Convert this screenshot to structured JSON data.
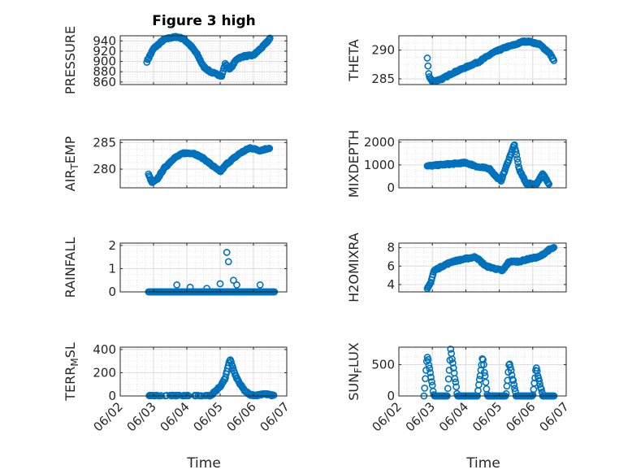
{
  "figure": {
    "title": "Figure 3 high",
    "xlabel": "Time",
    "marker_color": "#0072BD"
  },
  "chart_data": [
    {
      "type": "scatter",
      "ylabel": "PRESSURE",
      "xlim": [
        0,
        5
      ],
      "ylim": [
        855,
        950
      ],
      "yticks": [
        860,
        880,
        900,
        920,
        940
      ],
      "xticks": [
        "06/02",
        "06/03",
        "06/04",
        "06/05",
        "06/06",
        "06/07"
      ],
      "grid": true,
      "anchors": [
        [
          0.8,
          900
        ],
        [
          1.0,
          925
        ],
        [
          1.3,
          942
        ],
        [
          1.5,
          946
        ],
        [
          1.7,
          948
        ],
        [
          1.9,
          944
        ],
        [
          2.1,
          932
        ],
        [
          2.3,
          915
        ],
        [
          2.5,
          890
        ],
        [
          2.7,
          880
        ],
        [
          2.9,
          875
        ],
        [
          3.05,
          872
        ],
        [
          3.15,
          895
        ],
        [
          3.3,
          885
        ],
        [
          3.5,
          905
        ],
        [
          3.7,
          910
        ],
        [
          4.0,
          912
        ],
        [
          4.3,
          930
        ],
        [
          4.5,
          945
        ]
      ]
    },
    {
      "type": "scatter",
      "ylabel": "THETA",
      "xlim": [
        0,
        5
      ],
      "ylim": [
        284,
        292.5
      ],
      "yticks": [
        285,
        290
      ],
      "xticks": [
        "06/02",
        "06/03",
        "06/04",
        "06/05",
        "06/06",
        "06/07"
      ],
      "grid": true,
      "anchors": [
        [
          0.85,
          288.5
        ],
        [
          0.9,
          285.5
        ],
        [
          1.0,
          284.5
        ],
        [
          1.3,
          285
        ],
        [
          1.6,
          286
        ],
        [
          2.0,
          287
        ],
        [
          2.4,
          288
        ],
        [
          2.8,
          289.5
        ],
        [
          3.2,
          290.5
        ],
        [
          3.5,
          291
        ],
        [
          3.7,
          291.5
        ],
        [
          3.9,
          291.5
        ],
        [
          4.2,
          291
        ],
        [
          4.5,
          289.5
        ],
        [
          4.65,
          288
        ]
      ]
    },
    {
      "type": "scatter",
      "ylabel": "AIR_TEMP",
      "xlim": [
        0,
        5
      ],
      "ylim": [
        276.5,
        285.5
      ],
      "yticks": [
        280,
        285
      ],
      "xticks": [
        "06/02",
        "06/03",
        "06/04",
        "06/05",
        "06/06",
        "06/07"
      ],
      "grid": true,
      "anchors": [
        [
          0.85,
          279
        ],
        [
          0.95,
          277.5
        ],
        [
          1.1,
          278
        ],
        [
          1.3,
          280
        ],
        [
          1.6,
          282
        ],
        [
          1.9,
          283
        ],
        [
          2.2,
          283
        ],
        [
          2.5,
          282
        ],
        [
          2.8,
          280.5
        ],
        [
          3.0,
          279.5
        ],
        [
          3.2,
          281
        ],
        [
          3.4,
          282
        ],
        [
          3.6,
          283
        ],
        [
          3.9,
          284
        ],
        [
          4.2,
          283.5
        ],
        [
          4.5,
          284
        ]
      ]
    },
    {
      "type": "scatter",
      "ylabel": "MIXDEPTH",
      "xlim": [
        0,
        5
      ],
      "ylim": [
        0,
        2100
      ],
      "yticks": [
        0,
        1000,
        2000
      ],
      "xticks": [
        "06/02",
        "06/03",
        "06/04",
        "06/05",
        "06/06",
        "06/07"
      ],
      "grid": true,
      "anchors": [
        [
          0.85,
          950
        ],
        [
          1.2,
          1000
        ],
        [
          1.6,
          1050
        ],
        [
          2.0,
          1100
        ],
        [
          2.4,
          900
        ],
        [
          2.7,
          850
        ],
        [
          2.9,
          500
        ],
        [
          3.05,
          300
        ],
        [
          3.3,
          1300
        ],
        [
          3.45,
          1900
        ],
        [
          3.6,
          800
        ],
        [
          3.8,
          200
        ],
        [
          4.1,
          150
        ],
        [
          4.3,
          600
        ],
        [
          4.5,
          150
        ]
      ]
    },
    {
      "type": "scatter",
      "ylabel": "RAINFALL",
      "xlim": [
        0,
        5
      ],
      "ylim": [
        0,
        2.1
      ],
      "yticks": [
        0,
        1,
        2
      ],
      "xticks": [
        "06/02",
        "06/03",
        "06/04",
        "06/05",
        "06/06",
        "06/07"
      ],
      "grid": true,
      "anchors": [
        [
          0.85,
          0
        ],
        [
          4.65,
          0
        ]
      ],
      "spikes": [
        [
          1.7,
          0.3
        ],
        [
          2.1,
          0.2
        ],
        [
          2.6,
          0.15
        ],
        [
          3.0,
          0.35
        ],
        [
          3.2,
          1.7
        ],
        [
          3.25,
          1.3
        ],
        [
          3.4,
          0.5
        ],
        [
          3.5,
          0.3
        ],
        [
          4.2,
          0.3
        ]
      ]
    },
    {
      "type": "scatter",
      "ylabel": "H2OMIXRA",
      "xlim": [
        0,
        5
      ],
      "ylim": [
        3.2,
        8.5
      ],
      "yticks": [
        4,
        6,
        8
      ],
      "xticks": [
        "06/02",
        "06/03",
        "06/04",
        "06/05",
        "06/06",
        "06/07"
      ],
      "grid": true,
      "anchors": [
        [
          0.85,
          3.5
        ],
        [
          0.95,
          4.2
        ],
        [
          1.05,
          5.5
        ],
        [
          1.3,
          6
        ],
        [
          1.6,
          6.5
        ],
        [
          2.0,
          6.8
        ],
        [
          2.3,
          7
        ],
        [
          2.6,
          6
        ],
        [
          2.9,
          5.7
        ],
        [
          3.1,
          5.5
        ],
        [
          3.3,
          6.5
        ],
        [
          3.6,
          6.5
        ],
        [
          3.9,
          6.8
        ],
        [
          4.2,
          7
        ],
        [
          4.5,
          7.8
        ],
        [
          4.65,
          8
        ]
      ]
    },
    {
      "type": "scatter",
      "ylabel": "TERR_MSL",
      "xlim": [
        0,
        5
      ],
      "ylim": [
        0,
        420
      ],
      "yticks": [
        0,
        200,
        400
      ],
      "xticks": [
        "06/02",
        "06/03",
        "06/04",
        "06/05",
        "06/06",
        "06/07"
      ],
      "grid": true,
      "anchors": [
        [
          0.85,
          0
        ],
        [
          2.7,
          0
        ],
        [
          2.85,
          40
        ],
        [
          3.0,
          80
        ],
        [
          3.15,
          150
        ],
        [
          3.3,
          320
        ],
        [
          3.45,
          180
        ],
        [
          3.6,
          100
        ],
        [
          3.75,
          40
        ],
        [
          3.9,
          10
        ],
        [
          4.1,
          5
        ],
        [
          4.3,
          20
        ],
        [
          4.65,
          0
        ]
      ]
    },
    {
      "type": "scatter",
      "ylabel": "SUN_FLUX",
      "xlim": [
        0,
        5
      ],
      "ylim": [
        0,
        780
      ],
      "yticks": [
        0,
        500
      ],
      "xticks": [
        "06/02",
        "06/03",
        "06/04",
        "06/05",
        "06/06",
        "06/07"
      ],
      "grid": true,
      "diurnal": [
        [
          0.75,
          0.85,
          1.05,
          650
        ],
        [
          1.45,
          1.55,
          1.75,
          750
        ],
        [
          2.35,
          2.5,
          2.65,
          630
        ],
        [
          3.2,
          3.3,
          3.5,
          550
        ],
        [
          4.0,
          4.1,
          4.3,
          450
        ]
      ]
    }
  ]
}
